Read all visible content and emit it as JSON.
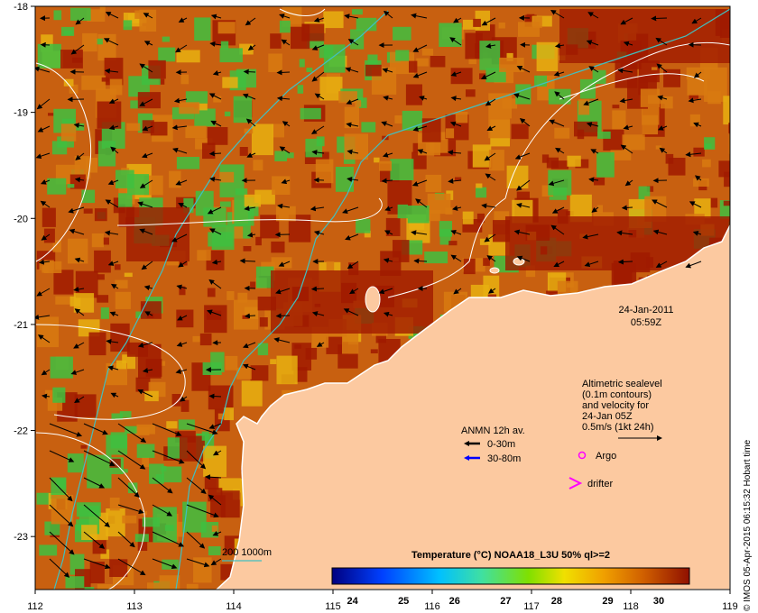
{
  "map": {
    "lon_range": [
      112,
      119
    ],
    "lat_range": [
      -23.5,
      -18
    ],
    "lon_ticks": [
      "112",
      "113",
      "114",
      "115",
      "116",
      "117",
      "118",
      "119"
    ],
    "lat_ticks": [
      "-18",
      "-19",
      "-20",
      "-21",
      "-22",
      "-23"
    ],
    "colors": {
      "land": "#fcc9a0",
      "sst_hot": "#a01a00",
      "sst_warm": "#d87a10",
      "sst_mid": "#e8b010",
      "sst_cool": "#40c040",
      "bathy_contour": "#40c0c0",
      "sealevel_contour": "#ffffff",
      "argo": "#ff00ff",
      "drifter": "#ff00ff"
    }
  },
  "date_label": {
    "date": "24-Jan-2011",
    "time": "05:59Z"
  },
  "altimetry_legend": {
    "line1": "Altimetric sealevel",
    "line2": "(0.1m contours)",
    "line3": "and velocity for",
    "line4": "24-Jan 05Z",
    "line5": "0.5m/s (1kt 24h)"
  },
  "anmn_legend": {
    "title": "ANMN 12h av.",
    "item1": "0-30m",
    "item2": "30-80m",
    "item1_color": "#000000",
    "item2_color": "#0000ff"
  },
  "markers": {
    "argo": "Argo",
    "drifter": "drifter"
  },
  "bathy_legend": "200  1000m",
  "colorbar": {
    "title": "Temperature (°C) NOAA18_L3U 50% ql>=2",
    "ticks": [
      "24",
      "25",
      "26",
      "27",
      "28",
      "29",
      "30"
    ],
    "stops": [
      "#000080",
      "#0040ff",
      "#00c0ff",
      "#40e0a0",
      "#80e000",
      "#f0e000",
      "#f0a000",
      "#d06000",
      "#901000"
    ]
  },
  "credit": "© IMOS 05-Apr-2015 06:15:32 Hobart time"
}
